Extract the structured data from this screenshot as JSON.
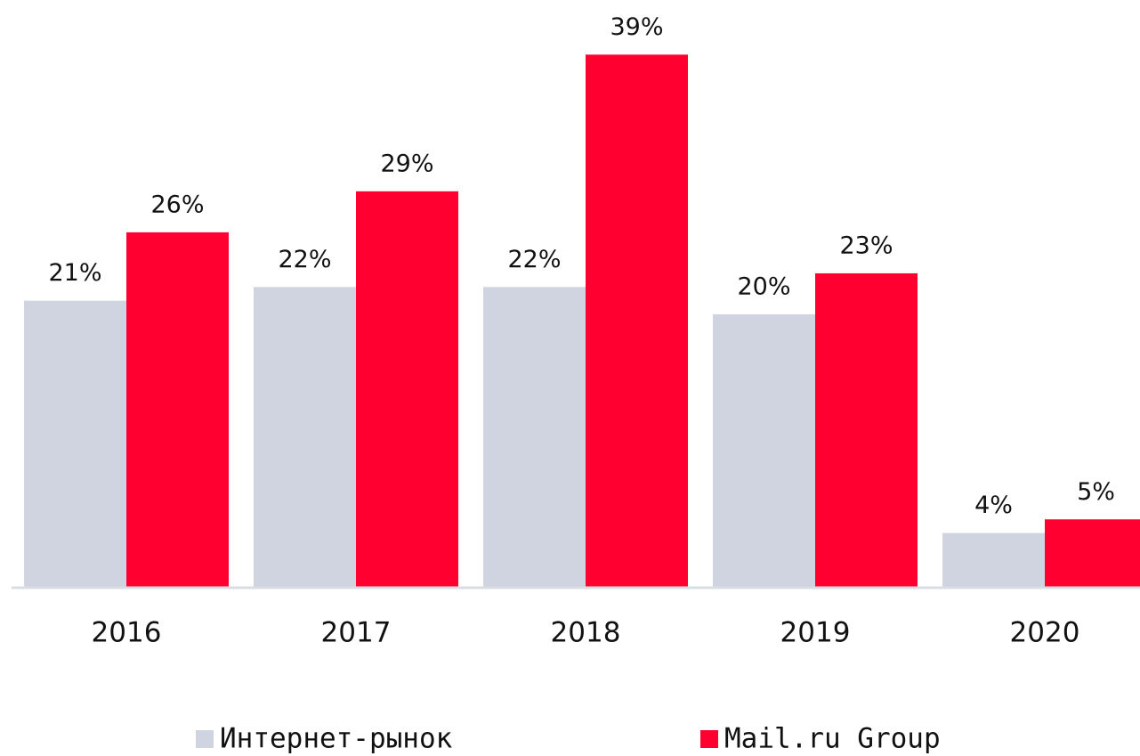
{
  "chart_data": {
    "type": "bar",
    "categories": [
      "2016",
      "2017",
      "2018",
      "2019",
      "2020"
    ],
    "series": [
      {
        "name": "Интернет-рынок",
        "color": "#cfd4e0",
        "values": [
          21,
          22,
          22,
          20,
          4
        ],
        "value_labels": [
          "21%",
          "22%",
          "22%",
          "20%",
          "4%"
        ]
      },
      {
        "name": "Mail.ru Group",
        "color": "#ff0030",
        "values": [
          26,
          29,
          39,
          23,
          5
        ],
        "value_labels": [
          "26%",
          "29%",
          "39%",
          "23%",
          "5%"
        ]
      }
    ],
    "ylim": [
      0,
      40
    ],
    "legend": "bottom"
  }
}
